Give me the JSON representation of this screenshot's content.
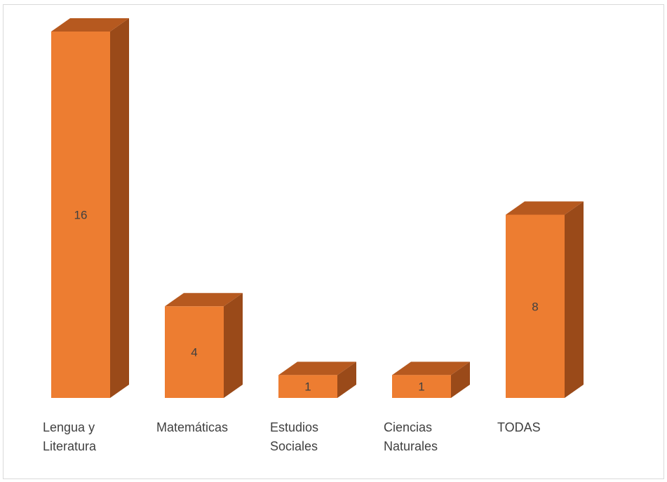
{
  "chart_data": {
    "type": "bar",
    "style": "3d-column",
    "categories": [
      [
        "Lengua y",
        "Literatura"
      ],
      [
        "Matemáticas"
      ],
      [
        "Estudios",
        "Sociales"
      ],
      [
        "Ciencias",
        "Naturales"
      ],
      [
        "TODAS"
      ]
    ],
    "values": [
      16,
      4,
      1,
      1,
      8
    ],
    "data_labels": [
      "16",
      "4",
      "1",
      "1",
      "8"
    ],
    "title": "",
    "xlabel": "",
    "ylabel": "",
    "ylim": [
      0,
      16
    ],
    "grid": false,
    "legend": "none",
    "colors": {
      "front": "#ED7D31",
      "top": "#B6591F",
      "side": "#9A4A19"
    }
  }
}
